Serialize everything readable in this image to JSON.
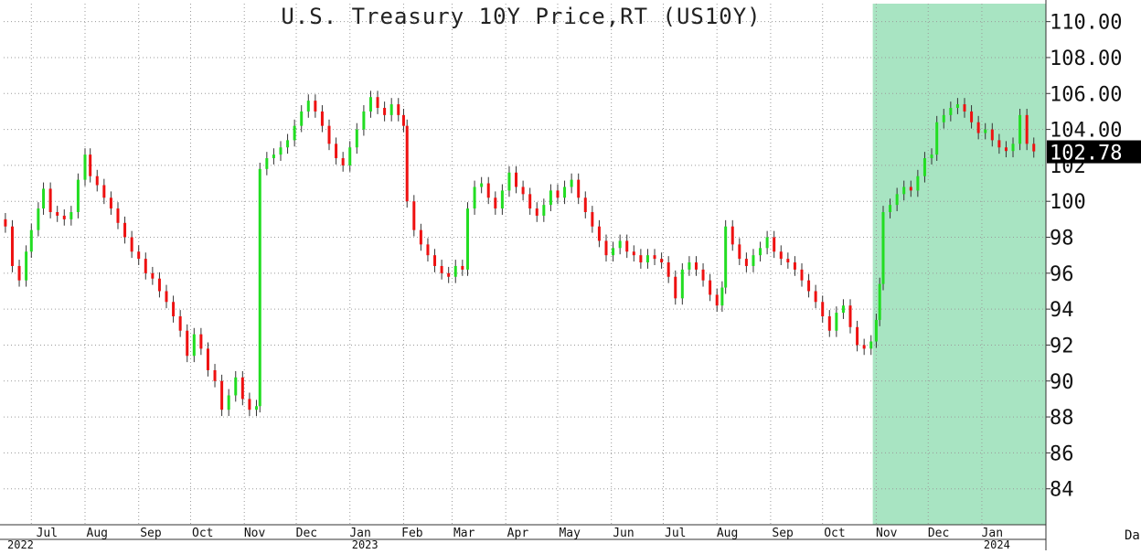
{
  "chart_data": {
    "type": "candlestick",
    "title": "U.S. Treasury 10Y Price,RT (US10Y)",
    "ylim": [
      82,
      111
    ],
    "y_ticks": [
      "84",
      "86",
      "88",
      "90",
      "92",
      "94",
      "96",
      "98",
      "100",
      "102",
      "104.00",
      "106.00",
      "108.00",
      "110.00"
    ],
    "last_price": "102.78",
    "x_ticks": [
      "Jul",
      "Aug",
      "Sep",
      "Oct",
      "Nov",
      "Dec",
      "Jan",
      "Feb",
      "Mar",
      "Apr",
      "May",
      "Jun",
      "Jul",
      "Aug",
      "Sep",
      "Oct",
      "Nov",
      "Dec",
      "Jan"
    ],
    "year_labels": [
      "2022",
      "2023",
      "2024"
    ],
    "corner_label": "Da",
    "highlight": {
      "from": "Nov 2023",
      "to": "Jan 2024",
      "color": "#a8e4c2"
    },
    "up_color": "#22dd22",
    "down_color": "#ee1111",
    "grid": true,
    "series": [
      {
        "x": "2022-06-16",
        "close": 98.6
      },
      {
        "x": "2022-06-20",
        "close": 96.4
      },
      {
        "x": "2022-06-24",
        "close": 95.6
      },
      {
        "x": "2022-06-28",
        "close": 97.2
      },
      {
        "x": "2022-07-01",
        "close": 98.4
      },
      {
        "x": "2022-07-05",
        "close": 99.6
      },
      {
        "x": "2022-07-08",
        "close": 100.7
      },
      {
        "x": "2022-07-12",
        "close": 99.4
      },
      {
        "x": "2022-07-16",
        "close": 99.2
      },
      {
        "x": "2022-07-20",
        "close": 99.0
      },
      {
        "x": "2022-07-24",
        "close": 99.4
      },
      {
        "x": "2022-07-28",
        "close": 101.2
      },
      {
        "x": "2022-08-01",
        "close": 102.6
      },
      {
        "x": "2022-08-04",
        "close": 101.4
      },
      {
        "x": "2022-08-08",
        "close": 100.9
      },
      {
        "x": "2022-08-12",
        "close": 100.2
      },
      {
        "x": "2022-08-16",
        "close": 99.6
      },
      {
        "x": "2022-08-20",
        "close": 98.8
      },
      {
        "x": "2022-08-24",
        "close": 98.0
      },
      {
        "x": "2022-08-28",
        "close": 97.2
      },
      {
        "x": "2022-09-01",
        "close": 96.8
      },
      {
        "x": "2022-09-05",
        "close": 96.0
      },
      {
        "x": "2022-09-09",
        "close": 95.7
      },
      {
        "x": "2022-09-13",
        "close": 95.0
      },
      {
        "x": "2022-09-17",
        "close": 94.4
      },
      {
        "x": "2022-09-21",
        "close": 93.6
      },
      {
        "x": "2022-09-25",
        "close": 92.8
      },
      {
        "x": "2022-09-29",
        "close": 91.4
      },
      {
        "x": "2022-10-03",
        "close": 92.6
      },
      {
        "x": "2022-10-07",
        "close": 91.8
      },
      {
        "x": "2022-10-11",
        "close": 90.6
      },
      {
        "x": "2022-10-15",
        "close": 90.0
      },
      {
        "x": "2022-10-19",
        "close": 88.4
      },
      {
        "x": "2022-10-23",
        "close": 89.2
      },
      {
        "x": "2022-10-27",
        "close": 90.2
      },
      {
        "x": "2022-10-31",
        "close": 89.0
      },
      {
        "x": "2022-11-04",
        "close": 88.4
      },
      {
        "x": "2022-11-08",
        "close": 88.6
      },
      {
        "x": "2022-11-10",
        "close": 101.8
      },
      {
        "x": "2022-11-14",
        "close": 102.4
      },
      {
        "x": "2022-11-18",
        "close": 102.6
      },
      {
        "x": "2022-11-22",
        "close": 103.0
      },
      {
        "x": "2022-11-26",
        "close": 103.4
      },
      {
        "x": "2022-11-30",
        "close": 104.2
      },
      {
        "x": "2022-12-04",
        "close": 105.0
      },
      {
        "x": "2022-12-08",
        "close": 105.6
      },
      {
        "x": "2022-12-12",
        "close": 105.0
      },
      {
        "x": "2022-12-16",
        "close": 104.2
      },
      {
        "x": "2022-12-20",
        "close": 103.2
      },
      {
        "x": "2022-12-24",
        "close": 102.4
      },
      {
        "x": "2022-12-28",
        "close": 102.0
      },
      {
        "x": "2023-01-01",
        "close": 103.0
      },
      {
        "x": "2023-01-05",
        "close": 104.0
      },
      {
        "x": "2023-01-09",
        "close": 105.0
      },
      {
        "x": "2023-01-13",
        "close": 105.8
      },
      {
        "x": "2023-01-17",
        "close": 105.2
      },
      {
        "x": "2023-01-21",
        "close": 104.8
      },
      {
        "x": "2023-01-25",
        "close": 105.4
      },
      {
        "x": "2023-01-29",
        "close": 104.8
      },
      {
        "x": "2023-02-01",
        "close": 104.2
      },
      {
        "x": "2023-02-03",
        "close": 100.0
      },
      {
        "x": "2023-02-07",
        "close": 98.4
      },
      {
        "x": "2023-02-11",
        "close": 97.6
      },
      {
        "x": "2023-02-15",
        "close": 97.0
      },
      {
        "x": "2023-02-19",
        "close": 96.4
      },
      {
        "x": "2023-02-23",
        "close": 96.0
      },
      {
        "x": "2023-02-27",
        "close": 95.8
      },
      {
        "x": "2023-03-03",
        "close": 96.4
      },
      {
        "x": "2023-03-07",
        "close": 96.2
      },
      {
        "x": "2023-03-10",
        "close": 99.6
      },
      {
        "x": "2023-03-14",
        "close": 100.8
      },
      {
        "x": "2023-03-18",
        "close": 101.0
      },
      {
        "x": "2023-03-22",
        "close": 100.2
      },
      {
        "x": "2023-03-26",
        "close": 99.6
      },
      {
        "x": "2023-03-30",
        "close": 100.6
      },
      {
        "x": "2023-04-03",
        "close": 101.6
      },
      {
        "x": "2023-04-07",
        "close": 100.8
      },
      {
        "x": "2023-04-11",
        "close": 100.4
      },
      {
        "x": "2023-04-15",
        "close": 99.6
      },
      {
        "x": "2023-04-19",
        "close": 99.2
      },
      {
        "x": "2023-04-23",
        "close": 99.8
      },
      {
        "x": "2023-04-27",
        "close": 100.6
      },
      {
        "x": "2023-05-01",
        "close": 100.2
      },
      {
        "x": "2023-05-05",
        "close": 100.8
      },
      {
        "x": "2023-05-09",
        "close": 101.2
      },
      {
        "x": "2023-05-13",
        "close": 100.2
      },
      {
        "x": "2023-05-17",
        "close": 99.4
      },
      {
        "x": "2023-05-21",
        "close": 98.6
      },
      {
        "x": "2023-05-25",
        "close": 97.8
      },
      {
        "x": "2023-05-29",
        "close": 97.0
      },
      {
        "x": "2023-06-02",
        "close": 97.4
      },
      {
        "x": "2023-06-06",
        "close": 97.8
      },
      {
        "x": "2023-06-10",
        "close": 97.2
      },
      {
        "x": "2023-06-14",
        "close": 97.0
      },
      {
        "x": "2023-06-18",
        "close": 96.6
      },
      {
        "x": "2023-06-22",
        "close": 97.0
      },
      {
        "x": "2023-06-26",
        "close": 96.8
      },
      {
        "x": "2023-06-30",
        "close": 96.6
      },
      {
        "x": "2023-07-04",
        "close": 95.8
      },
      {
        "x": "2023-07-08",
        "close": 94.6
      },
      {
        "x": "2023-07-12",
        "close": 96.2
      },
      {
        "x": "2023-07-16",
        "close": 96.6
      },
      {
        "x": "2023-07-20",
        "close": 96.2
      },
      {
        "x": "2023-07-24",
        "close": 95.6
      },
      {
        "x": "2023-07-28",
        "close": 94.8
      },
      {
        "x": "2023-08-01",
        "close": 94.2
      },
      {
        "x": "2023-08-04",
        "close": 95.2
      },
      {
        "x": "2023-08-06",
        "close": 98.6
      },
      {
        "x": "2023-08-10",
        "close": 97.6
      },
      {
        "x": "2023-08-14",
        "close": 96.8
      },
      {
        "x": "2023-08-18",
        "close": 96.4
      },
      {
        "x": "2023-08-22",
        "close": 97.0
      },
      {
        "x": "2023-08-26",
        "close": 97.4
      },
      {
        "x": "2023-08-30",
        "close": 98.0
      },
      {
        "x": "2023-09-03",
        "close": 97.2
      },
      {
        "x": "2023-09-07",
        "close": 96.8
      },
      {
        "x": "2023-09-11",
        "close": 96.6
      },
      {
        "x": "2023-09-15",
        "close": 96.2
      },
      {
        "x": "2023-09-19",
        "close": 95.6
      },
      {
        "x": "2023-09-23",
        "close": 95.0
      },
      {
        "x": "2023-09-27",
        "close": 94.4
      },
      {
        "x": "2023-10-01",
        "close": 93.6
      },
      {
        "x": "2023-10-05",
        "close": 92.8
      },
      {
        "x": "2023-10-09",
        "close": 93.8
      },
      {
        "x": "2023-10-13",
        "close": 94.2
      },
      {
        "x": "2023-10-17",
        "close": 93.0
      },
      {
        "x": "2023-10-21",
        "close": 92.0
      },
      {
        "x": "2023-10-25",
        "close": 91.8
      },
      {
        "x": "2023-10-29",
        "close": 92.2
      },
      {
        "x": "2023-11-01",
        "close": 93.4
      },
      {
        "x": "2023-11-03",
        "close": 95.4
      },
      {
        "x": "2023-11-05",
        "close": 99.4
      },
      {
        "x": "2023-11-09",
        "close": 99.8
      },
      {
        "x": "2023-11-13",
        "close": 100.4
      },
      {
        "x": "2023-11-17",
        "close": 100.8
      },
      {
        "x": "2023-11-21",
        "close": 100.6
      },
      {
        "x": "2023-11-25",
        "close": 101.4
      },
      {
        "x": "2023-11-29",
        "close": 102.4
      },
      {
        "x": "2023-12-03",
        "close": 102.6
      },
      {
        "x": "2023-12-06",
        "close": 104.4
      },
      {
        "x": "2023-12-10",
        "close": 104.8
      },
      {
        "x": "2023-12-14",
        "close": 105.2
      },
      {
        "x": "2023-12-18",
        "close": 105.4
      },
      {
        "x": "2023-12-22",
        "close": 105.0
      },
      {
        "x": "2023-12-26",
        "close": 104.4
      },
      {
        "x": "2023-12-30",
        "close": 103.8
      },
      {
        "x": "2024-01-03",
        "close": 104.0
      },
      {
        "x": "2024-01-07",
        "close": 103.4
      },
      {
        "x": "2024-01-11",
        "close": 103.0
      },
      {
        "x": "2024-01-15",
        "close": 102.8
      },
      {
        "x": "2024-01-19",
        "close": 103.2
      },
      {
        "x": "2024-01-23",
        "close": 104.8
      },
      {
        "x": "2024-01-27",
        "close": 103.2
      },
      {
        "x": "2024-01-31",
        "close": 102.78
      }
    ]
  }
}
